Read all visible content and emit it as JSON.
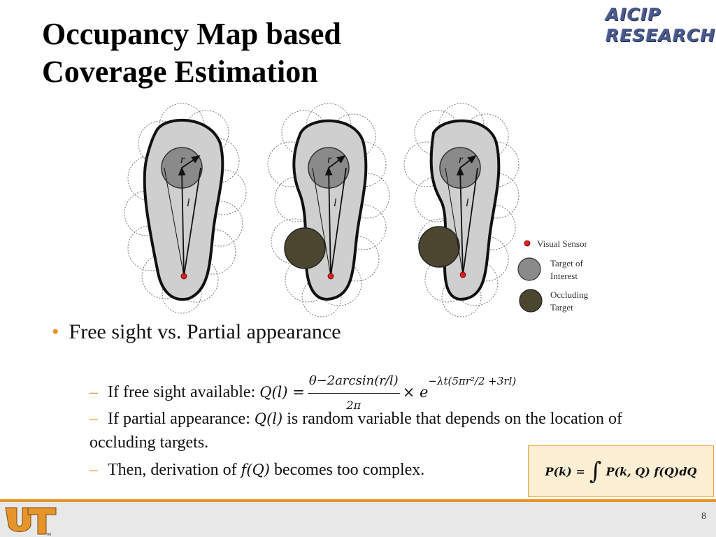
{
  "slide": {
    "title_line1": "Occupancy Map based",
    "title_line2": "Coverage Estimation",
    "logo_line1": "AICIP",
    "logo_line2": "RESEARCH",
    "page_number": "8"
  },
  "figure": {
    "label_r": "r",
    "label_l": "l",
    "legend": {
      "sensor": "Visual Sensor",
      "target_1": "Target of",
      "target_2": "Interest",
      "occluding_1": "Occluding",
      "occluding_2": "Target"
    },
    "colors": {
      "region_fill": "#cfcfcf",
      "target_fill": "#8a8a8a",
      "occluder_fill": "#4b4630",
      "sensor": "#e02020"
    }
  },
  "bullets": {
    "main": "Free sight vs. Partial appearance",
    "sub1_text": "If free sight available: ",
    "sub1_lhs": "Q(l) =",
    "sub1_num": "θ−2arcsin(r/l)",
    "sub1_den": "2π",
    "sub1_times": "× e",
    "sub1_exp": "−λt(5πr²/2 +3rl)",
    "sub2_pre": "If partial appearance: ",
    "sub2_math": "Q(l)",
    "sub2_post": " is random variable that depends on the location of occluding targets.",
    "sub3_pre": "Then, derivation of ",
    "sub3_math": "f(Q)",
    "sub3_post": " becomes too complex."
  },
  "formula_box": {
    "lhs": "P(k) =",
    "integral": "∫",
    "rhs": "P(k, Q) f(Q)dQ"
  },
  "colors": {
    "accent": "#e6952b",
    "box_fill": "#fcefd4"
  }
}
